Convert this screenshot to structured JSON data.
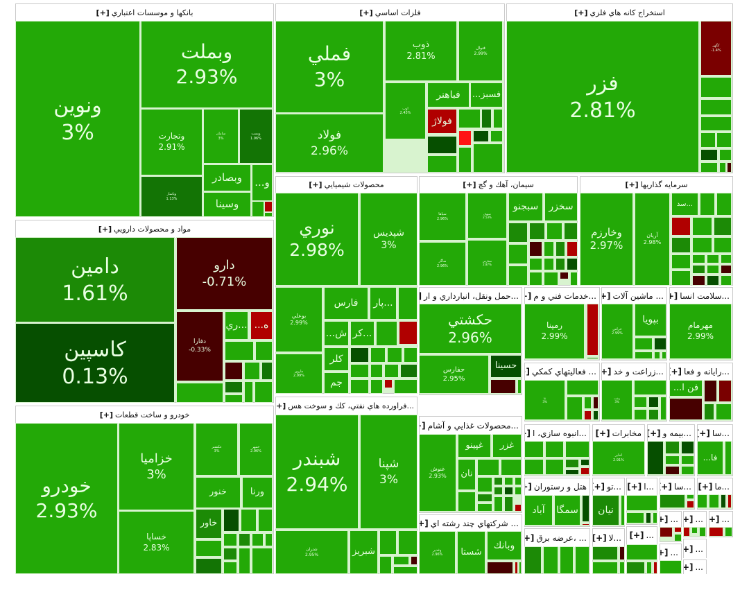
{
  "palette": {
    "g": "#23a907",
    "g2": "#1c8a06",
    "g3": "#137405",
    "dg": "#064f00",
    "r": "#b00000",
    "dr": "#470000",
    "mr": "#7a0000",
    "br": "#ff1414",
    "gap": "#d8f3cf"
  },
  "expand_label": "[+]",
  "sectors": [
    {
      "title": "بانكها و موسسات اعتباري",
      "tiles": [
        {
          "symbol": "ونوين",
          "change": "3%",
          "c": "g"
        },
        {
          "symbol": "وبملت",
          "change": "2.93%",
          "c": "g"
        },
        {
          "symbol": "وتجارت",
          "change": "2.91%",
          "c": "g"
        },
        {
          "symbol": "سامان",
          "change": "3%",
          "c": "g"
        },
        {
          "symbol": "وپست",
          "change": "1.96%",
          "c": "g3"
        },
        {
          "symbol": "وپاسار",
          "change": "1.13%",
          "c": "g3"
        },
        {
          "symbol": "وبصادر",
          "c": "g"
        },
        {
          "symbol": "وسينا",
          "c": "g"
        },
        {
          "symbol": "و...",
          "c": "g"
        }
      ],
      "fillers": [
        "g",
        "r",
        "g"
      ]
    },
    {
      "title": "فلزات اساسي",
      "tiles": [
        {
          "symbol": "فملي",
          "change": "3%",
          "c": "g"
        },
        {
          "symbol": "فولاد",
          "change": "2.96%",
          "c": "g"
        },
        {
          "symbol": "ذوب",
          "change": "2.81%",
          "c": "g"
        },
        {
          "symbol": "فنوال",
          "change": "2.99%",
          "c": "g"
        },
        {
          "symbol": "اوب",
          "change": "2.43%",
          "c": "g"
        },
        {
          "symbol": "فباهنر",
          "c": "g"
        },
        {
          "symbol": "فسبز...",
          "c": "g"
        },
        {
          "symbol": "فولاژ",
          "c": "r"
        }
      ],
      "fillers": [
        "dg",
        "g",
        "g",
        "g3",
        "g",
        "br",
        "dg",
        "g",
        "g",
        "g"
      ]
    },
    {
      "title": "استخراج كانه هاي فلزي",
      "tiles": [
        {
          "symbol": "فزر",
          "change": "2.81%",
          "c": "g"
        },
        {
          "symbol": "كگهر",
          "change": "-1.4%",
          "c": "mr"
        }
      ],
      "fillers": [
        "g",
        "g",
        "g",
        "g",
        "g",
        "dg",
        "g",
        "g",
        "g",
        "dr"
      ]
    },
    {
      "title": "مواد و محصولات دارويي",
      "tiles": [
        {
          "symbol": "دامين",
          "change": "1.61%",
          "c": "g2"
        },
        {
          "symbol": "كاسپين",
          "change": "0.13%",
          "c": "dg"
        },
        {
          "symbol": "دارو",
          "change": "-0.71%",
          "c": "dr"
        },
        {
          "symbol": "دفارا",
          "change": "-0.33%",
          "c": "dr"
        },
        {
          "symbol": "...ري",
          "c": "g"
        },
        {
          "symbol": "ه...",
          "c": "r"
        }
      ],
      "fillers": [
        "g",
        "g",
        "g",
        "dr",
        "g",
        "g3",
        "g3",
        "g",
        "g",
        "g"
      ]
    },
    {
      "title": "خودرو و ساخت قطعات",
      "tiles": [
        {
          "symbol": "خودرو",
          "change": "2.93%",
          "c": "g"
        },
        {
          "symbol": "خزاميا",
          "change": "3%",
          "c": "g"
        },
        {
          "symbol": "خساپا",
          "change": "2.83%",
          "c": "g"
        },
        {
          "symbol": "عكشتر",
          "change": "3%",
          "c": "g"
        },
        {
          "symbol": "خمهر",
          "change": "2.96%",
          "c": "g"
        },
        {
          "symbol": "خنور",
          "c": "g"
        },
        {
          "symbol": "ورنا",
          "c": "g"
        },
        {
          "symbol": "خاور",
          "c": "g2"
        }
      ],
      "fillers": [
        "dg",
        "g",
        "g",
        "g",
        "g3",
        "g",
        "g2",
        "g",
        "g",
        "g2",
        "g",
        "g",
        "g"
      ]
    },
    {
      "title": "محصولات شيميايي",
      "tiles": [
        {
          "symbol": "نوري",
          "change": "2.98%",
          "c": "g"
        },
        {
          "symbol": "شپديس",
          "change": "3%",
          "c": "g"
        },
        {
          "symbol": "بوعلي",
          "change": "2.99%",
          "c": "g"
        },
        {
          "symbol": "مارون",
          "change": "2.99%",
          "c": "g"
        },
        {
          "symbol": "فارس",
          "c": "g"
        },
        {
          "symbol": "...پار",
          "c": "g"
        },
        {
          "symbol": "ش...",
          "c": "g"
        },
        {
          "symbol": "...كر",
          "c": "g"
        },
        {
          "symbol": "كلر",
          "c": "g"
        },
        {
          "symbol": "جم",
          "c": "g"
        }
      ],
      "fillers": [
        "g",
        "g",
        "r",
        "dg",
        "g",
        "g",
        "g",
        "g",
        "g",
        "g",
        "g",
        "g3",
        "g",
        "r",
        "g"
      ]
    },
    {
      "title": "...فراورده هاي نفتي، كك و سوخت هس",
      "tiles": [
        {
          "symbol": "شبندر",
          "change": "2.94%",
          "c": "g"
        },
        {
          "symbol": "شپنا",
          "change": "3%",
          "c": "g"
        },
        {
          "symbol": "شتران",
          "change": "2.95%",
          "c": "g"
        },
        {
          "symbol": "شبريز",
          "c": "g"
        }
      ],
      "fillers": [
        "g",
        "g",
        "g",
        "g",
        "dr",
        "g"
      ]
    },
    {
      "title": "سيمان، آهك و گچ",
      "tiles": [
        {
          "symbol": "سپاها",
          "change": "2.96%",
          "c": "g"
        },
        {
          "symbol": "سبهان",
          "change": "2.53%",
          "c": "g"
        },
        {
          "symbol": "ساگر",
          "change": "2.96%",
          "c": "g"
        },
        {
          "symbol": "سفارس",
          "change": "2.87%",
          "c": "g"
        },
        {
          "symbol": "سبجنو",
          "c": "g"
        },
        {
          "symbol": "سخزر",
          "c": "g"
        }
      ],
      "fillers": [
        "g2",
        "g2",
        "g",
        "g2",
        "g",
        "g",
        "dr",
        "g",
        "g2",
        "r",
        "g",
        "g",
        "g",
        "g2",
        "dg",
        "g",
        "dr",
        "g"
      ]
    },
    {
      "title": "سرمايه گذاريها",
      "tiles": [
        {
          "symbol": "وخارزم",
          "change": "2.97%",
          "c": "g"
        },
        {
          "symbol": "آريان",
          "change": "2.98%",
          "c": "g"
        },
        {
          "symbol": "...سد",
          "c": "g"
        }
      ],
      "fillers": [
        "g",
        "g",
        "r",
        "g",
        "g2",
        "g2",
        "g",
        "g",
        "g",
        "g",
        "g",
        "g",
        "g",
        "g2",
        "g",
        "dr",
        "dr",
        "dg",
        "g"
      ]
    },
    {
      "title": "...حمل ونقل، انبارداري و ار",
      "small": true,
      "tiles": [
        {
          "symbol": "حكشتي",
          "change": "2.96%",
          "c": "g"
        },
        {
          "symbol": "حفارس",
          "change": "2.95%",
          "c": "g"
        },
        {
          "symbol": "حسينا",
          "c": "dg"
        }
      ],
      "fillers": [
        "dr",
        "g"
      ]
    },
    {
      "title": "...خدمات فني و م",
      "small": true,
      "tiles": [
        {
          "symbol": "رمپنا",
          "change": "2.99%",
          "c": "g"
        }
      ],
      "fillers": [
        "r",
        "g2"
      ]
    },
    {
      "title": "... ماشين آلات",
      "small": true,
      "tiles": [
        {
          "symbol": "خراس",
          "change": "2.99%",
          "c": "g"
        },
        {
          "symbol": "بپويا",
          "c": "g"
        }
      ],
      "fillers": [
        "g",
        "dg",
        "g",
        "g",
        "g"
      ]
    },
    {
      "title": "...سلامت انسا",
      "small": true,
      "tiles": [
        {
          "symbol": "مهرمام",
          "change": "2.99%",
          "c": "g"
        }
      ],
      "fillers": []
    },
    {
      "title": "... فعاليتهاي كمكي",
      "small": true,
      "tiles": [
        {
          "symbol": "ثنا",
          "change": "3%",
          "c": "g"
        }
      ],
      "fillers": [
        "g",
        "g",
        "g",
        "dr",
        "r",
        "dg"
      ]
    },
    {
      "title": "...زراعت و خد",
      "small": true,
      "tiles": [
        {
          "symbol": "زشت",
          "change": "3%",
          "c": "g"
        }
      ],
      "fillers": [
        "g",
        "g",
        "dg",
        "g",
        "g",
        "g2"
      ]
    },
    {
      "title": "...رايانه و فعا",
      "small": true,
      "tiles": [
        {
          "symbol": "فن ا...",
          "c": "g"
        }
      ],
      "fillers": [
        "dr",
        "mr",
        "dr",
        "g2",
        "g"
      ]
    },
    {
      "title": "...محصولات غذايي و آشام",
      "small": true,
      "tiles": [
        {
          "symbol": "غنوش",
          "change": "2.93%",
          "c": "g"
        },
        {
          "symbol": "غپينو",
          "c": "g"
        },
        {
          "symbol": "غزر",
          "c": "g"
        },
        {
          "symbol": "نان",
          "c": "g"
        }
      ],
      "fillers": [
        "g",
        "g",
        "g",
        "g",
        "g2",
        "g",
        "g",
        "g2",
        "dg",
        "g",
        "g2",
        "g",
        "g",
        "g2",
        "r"
      ]
    },
    {
      "title": "... شركتهاي چند رشته اي",
      "small": true,
      "tiles": [
        {
          "symbol": "وغدير",
          "change": "2.96%",
          "c": "g"
        },
        {
          "symbol": "شستا",
          "c": "g"
        },
        {
          "symbol": "وبانك",
          "c": "g"
        }
      ],
      "fillers": [
        "dr",
        "r",
        "g"
      ]
    },
    {
      "title": "...انبوه سازي، ا",
      "small": true,
      "tiles": [],
      "fillers": [
        "g",
        "g",
        "g",
        "g",
        "g",
        "g2",
        "dg",
        "r",
        "dg"
      ]
    },
    {
      "title": "مخابرات",
      "small": true,
      "tiles": [
        {
          "symbol": "اخابر",
          "change": "2.91%",
          "c": "g"
        }
      ],
      "fillers": []
    },
    {
      "title": "...بيمه و",
      "small": true,
      "tiles": [],
      "fillers": [
        "dg",
        "g2",
        "dg",
        "g",
        "g",
        "dr",
        "g"
      ]
    },
    {
      "title": "...سا",
      "small": true,
      "tiles": [
        {
          "symbol": "فا...",
          "c": "g"
        }
      ],
      "fillers": [
        "g"
      ]
    },
    {
      "title": "هتل و رستوران",
      "small": true,
      "tiles": [
        {
          "symbol": "آباد",
          "c": "g"
        },
        {
          "symbol": "سمگا",
          "c": "g"
        }
      ],
      "fillers": [
        "dg",
        "r"
      ]
    },
    {
      "title": "...تو",
      "small": true,
      "tiles": [
        {
          "symbol": "نيان",
          "c": "g2"
        }
      ],
      "fillers": [
        "g"
      ]
    },
    {
      "title": "...ا",
      "small": true,
      "tiles": [],
      "fillers": [
        "g",
        "g",
        "dg",
        "g"
      ]
    },
    {
      "title": "...سا",
      "small": true,
      "tiles": [],
      "fillers": [
        "g2",
        "g",
        "r"
      ]
    },
    {
      "title": "...ما",
      "small": true,
      "tiles": [],
      "fillers": [
        "g",
        "g",
        "dg",
        "r"
      ]
    },
    {
      "title": "... ،عرضه برق",
      "small": true,
      "tiles": [],
      "fillers": [
        "g2",
        "g",
        "g",
        "g"
      ]
    },
    {
      "title": "...لا",
      "small": true,
      "tiles": [],
      "fillers": [
        "g2",
        "g",
        "dr",
        "g"
      ]
    },
    {
      "title": "...",
      "small": true,
      "tiles": [],
      "fillers": [
        "g",
        "g2",
        "g",
        "r"
      ]
    },
    {
      "title": "...",
      "small": true,
      "tiles": [],
      "fillers": [
        "mr",
        "r",
        "g"
      ]
    },
    {
      "title": "...",
      "small": true,
      "tiles": [],
      "fillers": [
        "r",
        "g",
        "g"
      ]
    },
    {
      "title": "...",
      "small": true,
      "tiles": [],
      "fillers": [
        "r",
        "g"
      ]
    },
    {
      "title": "...",
      "small": true,
      "tiles": [],
      "fillers": [
        "g"
      ]
    },
    {
      "title": "...",
      "small": true,
      "tiles": [],
      "fillers": []
    },
    {
      "title": "...",
      "small": true,
      "tiles": [],
      "fillers": []
    }
  ]
}
